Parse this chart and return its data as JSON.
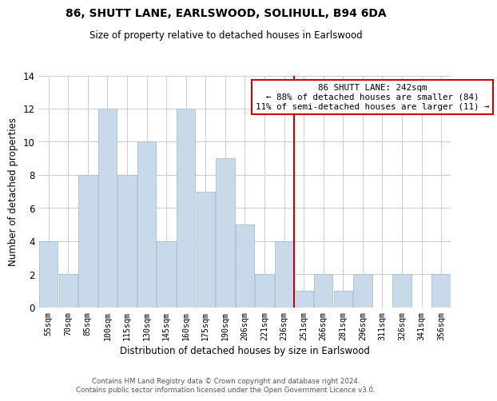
{
  "title": "86, SHUTT LANE, EARLSWOOD, SOLIHULL, B94 6DA",
  "subtitle": "Size of property relative to detached houses in Earlswood",
  "xlabel": "Distribution of detached houses by size in Earlswood",
  "ylabel": "Number of detached properties",
  "bar_labels": [
    "55sqm",
    "70sqm",
    "85sqm",
    "100sqm",
    "115sqm",
    "130sqm",
    "145sqm",
    "160sqm",
    "175sqm",
    "190sqm",
    "206sqm",
    "221sqm",
    "236sqm",
    "251sqm",
    "266sqm",
    "281sqm",
    "296sqm",
    "311sqm",
    "326sqm",
    "341sqm",
    "356sqm"
  ],
  "bar_values": [
    4,
    2,
    8,
    12,
    8,
    10,
    4,
    12,
    7,
    9,
    5,
    2,
    4,
    1,
    2,
    1,
    2,
    0,
    2,
    0,
    2
  ],
  "bar_color": "#c8daea",
  "bar_edge_color": "#aabfd0",
  "ylim": [
    0,
    14
  ],
  "yticks": [
    0,
    2,
    4,
    6,
    8,
    10,
    12,
    14
  ],
  "vline_x": 12.5,
  "vline_color": "#cc0000",
  "annotation_box_text": "86 SHUTT LANE: 242sqm\n← 88% of detached houses are smaller (84)\n11% of semi-detached houses are larger (11) →",
  "annotation_box_color": "#cc0000",
  "footer_line1": "Contains HM Land Registry data © Crown copyright and database right 2024.",
  "footer_line2": "Contains public sector information licensed under the Open Government Licence v3.0.",
  "bg_color": "#ffffff",
  "grid_color": "#cccccc"
}
